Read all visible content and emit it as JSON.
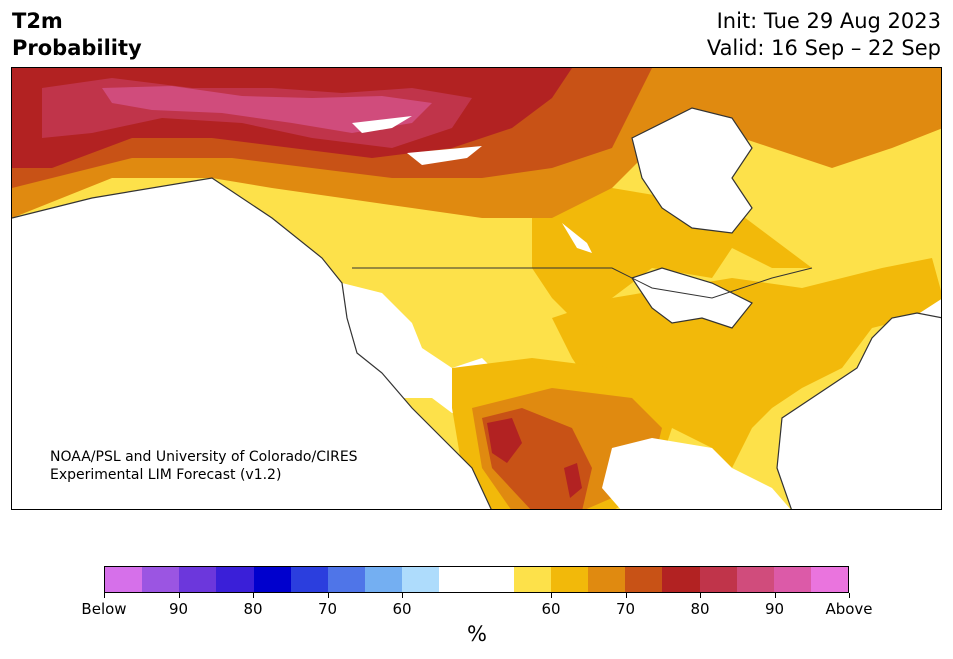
{
  "header": {
    "title_line1": "T2m",
    "title_line2": "Probability",
    "init": "Init: Tue 29 Aug 2023",
    "valid": "Valid: 16 Sep – 22 Sep"
  },
  "credit": {
    "line1": "NOAA/PSL and University of Colorado/CIRES",
    "line2": "Experimental LIM Forecast (v1.2)"
  },
  "colorbar": {
    "colors": [
      "#d670ea",
      "#9b55e2",
      "#6c37dc",
      "#3a1fd8",
      "#0000cd",
      "#2b3ede",
      "#4f75e8",
      "#74aff2",
      "#aedcfc",
      "#ffffff",
      "#ffffff",
      "#fde14a",
      "#f2b90a",
      "#e08a10",
      "#c85216",
      "#b22222",
      "#c0344a",
      "#d04c7c",
      "#dc5aa8",
      "#ea74de"
    ],
    "tick_labels": [
      "Below",
      "90",
      "80",
      "70",
      "60",
      "60",
      "70",
      "80",
      "90",
      "Above"
    ],
    "unit": "%"
  },
  "legend_colors": {
    "near_normal": "#ffffff",
    "above_60": "#fde14a",
    "above_65": "#f2b90a",
    "above_70": "#e08a10",
    "above_75": "#c85216",
    "above_80": "#b22222",
    "above_85": "#c0344a",
    "above_90": "#d04c7c"
  }
}
